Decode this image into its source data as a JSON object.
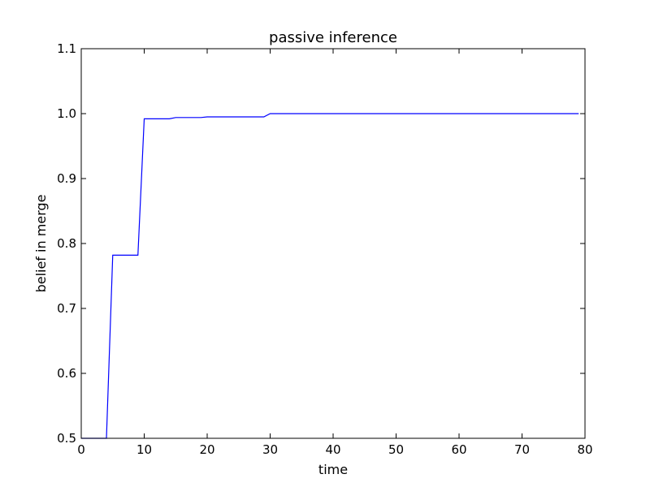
{
  "chart_data": {
    "type": "line",
    "title": "passive inference",
    "xlabel": "time",
    "ylabel": "belief in merge",
    "xlim": [
      0,
      80
    ],
    "ylim": [
      0.5,
      1.1
    ],
    "xticks": [
      "0",
      "10",
      "20",
      "30",
      "40",
      "50",
      "60",
      "70",
      "80"
    ],
    "yticks": [
      "0.5",
      "0.6",
      "0.7",
      "0.8",
      "0.9",
      "1.0",
      "1.1"
    ],
    "grid": false,
    "line_color": "#0000ff",
    "series": [
      {
        "x": [
          0,
          1,
          2,
          3,
          4,
          5,
          6,
          7,
          8,
          9,
          10,
          11,
          12,
          13,
          14,
          15,
          16,
          17,
          18,
          19,
          20,
          21,
          22,
          23,
          24,
          25,
          26,
          27,
          28,
          29,
          30,
          31,
          32,
          33,
          34,
          35,
          36,
          37,
          38,
          39,
          40,
          41,
          42,
          43,
          44,
          45,
          46,
          47,
          48,
          49,
          50,
          51,
          52,
          53,
          54,
          55,
          56,
          57,
          58,
          59,
          60,
          61,
          62,
          63,
          64,
          65,
          66,
          67,
          68,
          69,
          70,
          71,
          72,
          73,
          74,
          75,
          76,
          77,
          78,
          79
        ],
        "values": [
          0.5,
          0.5,
          0.5,
          0.5,
          0.5,
          0.782,
          0.782,
          0.782,
          0.782,
          0.782,
          0.992,
          0.992,
          0.992,
          0.992,
          0.992,
          0.994,
          0.994,
          0.994,
          0.994,
          0.994,
          0.995,
          0.995,
          0.995,
          0.995,
          0.995,
          0.995,
          0.995,
          0.995,
          0.995,
          0.995,
          1.0,
          1.0,
          1.0,
          1.0,
          1.0,
          1.0,
          1.0,
          1.0,
          1.0,
          1.0,
          1.0,
          1.0,
          1.0,
          1.0,
          1.0,
          1.0,
          1.0,
          1.0,
          1.0,
          1.0,
          1.0,
          1.0,
          1.0,
          1.0,
          1.0,
          1.0,
          1.0,
          1.0,
          1.0,
          1.0,
          1.0,
          1.0,
          1.0,
          1.0,
          1.0,
          1.0,
          1.0,
          1.0,
          1.0,
          1.0,
          1.0,
          1.0,
          1.0,
          1.0,
          1.0,
          1.0,
          1.0,
          1.0,
          1.0,
          1.0
        ]
      }
    ]
  }
}
